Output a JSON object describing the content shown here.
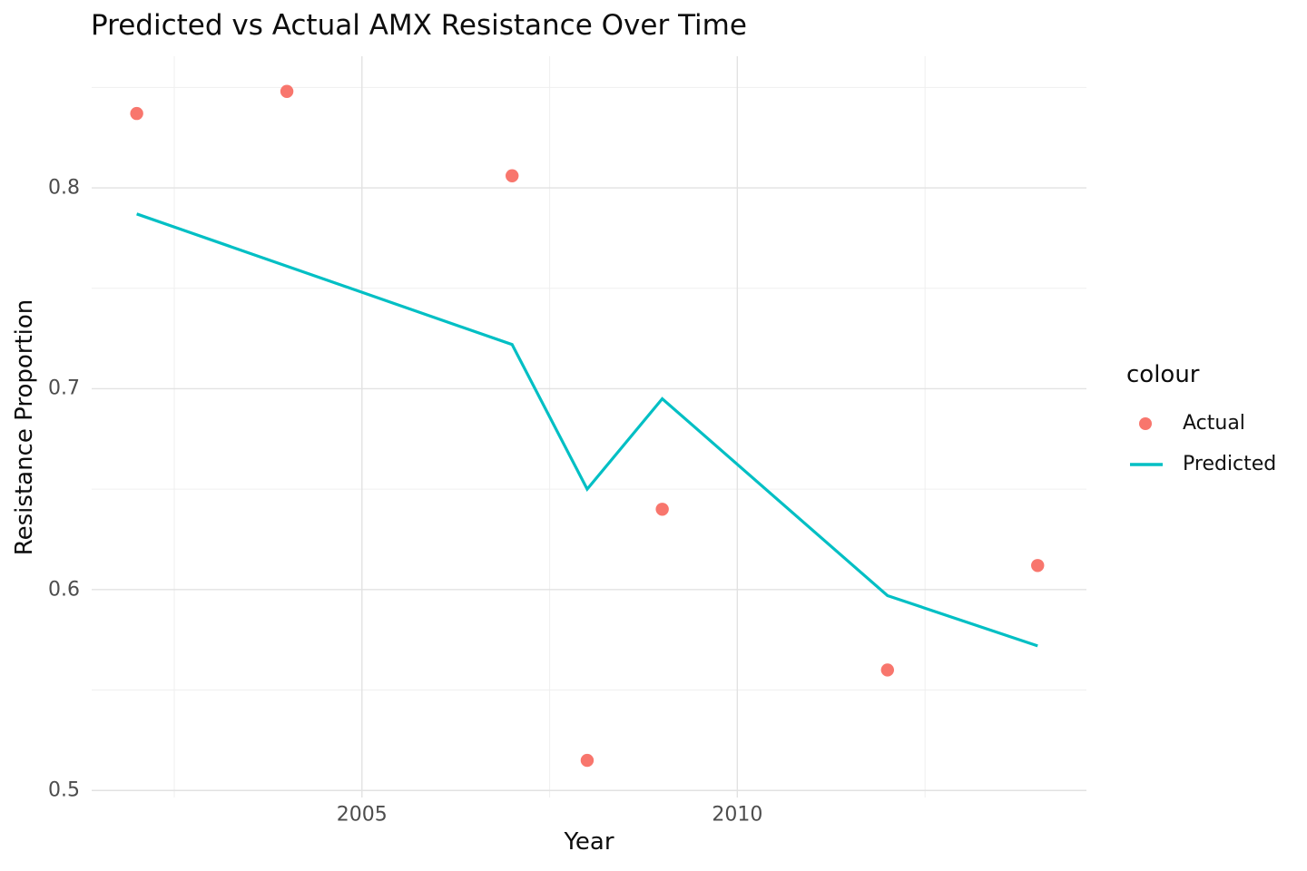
{
  "chart_data": {
    "type": "scatter",
    "title": "Predicted vs Actual AMX Resistance Over Time",
    "xlabel": "Year",
    "ylabel": "Resistance Proportion",
    "legend_title": "colour",
    "legend_position": "right",
    "grid": true,
    "xlim": [
      2001.4,
      2014.65
    ],
    "ylim": [
      0.4965,
      0.8655
    ],
    "x_major_ticks": [
      2005,
      2010
    ],
    "x_tick_labels": [
      "2005",
      "2010"
    ],
    "x_minor_ticks": [
      2002.5,
      2007.5,
      2012.5
    ],
    "y_major_ticks": [
      0.5,
      0.6,
      0.7,
      0.8
    ],
    "y_tick_labels": [
      "0.5",
      "0.6",
      "0.7",
      "0.8"
    ],
    "y_minor_ticks": [
      0.55,
      0.65,
      0.75,
      0.85
    ],
    "series": [
      {
        "name": "Actual",
        "type": "points",
        "color": "#F8766D",
        "x": [
          2002,
          2004,
          2007,
          2008,
          2009,
          2012,
          2014
        ],
        "y": [
          0.837,
          0.848,
          0.806,
          0.515,
          0.64,
          0.56,
          0.612
        ]
      },
      {
        "name": "Predicted",
        "type": "line",
        "color": "#00BFC4",
        "x": [
          2002,
          2007,
          2008,
          2009,
          2012,
          2014
        ],
        "y": [
          0.787,
          0.722,
          0.65,
          0.695,
          0.597,
          0.572
        ]
      }
    ]
  },
  "colors": {
    "background": "#FFFFFF",
    "grid_major": "#E2E2E2",
    "grid_minor": "#EFEFEF",
    "tick_label": "#4D4D4D",
    "text": "#0D0D0D",
    "actual": "#F8766D",
    "predicted": "#00BFC4"
  }
}
